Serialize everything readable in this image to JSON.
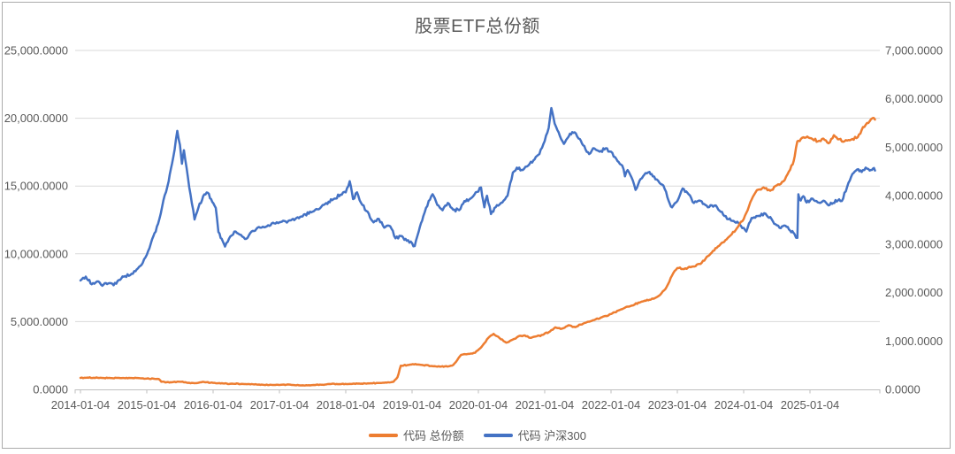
{
  "chart_data": {
    "type": "line",
    "title": "股票ETF总份额",
    "legend_position": "bottom",
    "grid": true,
    "background": "#FFFFFF",
    "gridline_color": "#D9D9D9",
    "axis_line_color": "#BFBFBF",
    "text_color": "#595959",
    "frame_color": "#ABABAB",
    "x_axis": {
      "type": "date",
      "domain_years": [
        2014,
        2026
      ],
      "tick_labels": [
        "2014-01-04",
        "2015-01-04",
        "2016-01-04",
        "2017-01-04",
        "2018-01-04",
        "2019-01-04",
        "2020-01-04",
        "2021-01-04",
        "2022-01-04",
        "2023-01-04",
        "2024-01-04",
        "2025-01-04"
      ]
    },
    "y_axis_left": {
      "min": 0,
      "max": 25000,
      "step": 5000,
      "tick_labels": [
        "0.0000",
        "5,000.0000",
        "10,000.0000",
        "15,000.0000",
        "20,000.0000",
        "25,000.0000"
      ]
    },
    "y_axis_right": {
      "min": 0,
      "max": 7000,
      "step": 1000,
      "tick_labels": [
        "0.0000",
        "1,000.0000",
        "2,000.0000",
        "3,000.0000",
        "4,000.0000",
        "5,000.0000",
        "6,000.0000",
        "7,000.0000"
      ]
    },
    "series": [
      {
        "name": "代码 总份额",
        "axis": "left",
        "color": "#ED7D31",
        "points": [
          [
            2014.0,
            850
          ],
          [
            2014.1,
            870
          ],
          [
            2014.2,
            855
          ],
          [
            2014.3,
            860
          ],
          [
            2014.45,
            840
          ],
          [
            2014.6,
            835
          ],
          [
            2014.75,
            840
          ],
          [
            2014.9,
            820
          ],
          [
            2015.0,
            800
          ],
          [
            2015.1,
            790
          ],
          [
            2015.18,
            770
          ],
          [
            2015.22,
            560
          ],
          [
            2015.3,
            530
          ],
          [
            2015.4,
            545
          ],
          [
            2015.5,
            560
          ],
          [
            2015.6,
            500
          ],
          [
            2015.7,
            470
          ],
          [
            2015.8,
            520
          ],
          [
            2015.9,
            530
          ],
          [
            2016.0,
            480
          ],
          [
            2016.15,
            440
          ],
          [
            2016.3,
            420
          ],
          [
            2016.45,
            400
          ],
          [
            2016.6,
            380
          ],
          [
            2016.75,
            340
          ],
          [
            2016.9,
            330
          ],
          [
            2017.05,
            350
          ],
          [
            2017.2,
            330
          ],
          [
            2017.35,
            300
          ],
          [
            2017.5,
            320
          ],
          [
            2017.65,
            340
          ],
          [
            2017.75,
            400
          ],
          [
            2017.9,
            390
          ],
          [
            2018.05,
            400
          ],
          [
            2018.2,
            430
          ],
          [
            2018.35,
            440
          ],
          [
            2018.5,
            470
          ],
          [
            2018.62,
            500
          ],
          [
            2018.72,
            560
          ],
          [
            2018.78,
            900
          ],
          [
            2018.83,
            1750
          ],
          [
            2018.95,
            1800
          ],
          [
            2019.05,
            1870
          ],
          [
            2019.15,
            1800
          ],
          [
            2019.3,
            1720
          ],
          [
            2019.42,
            1680
          ],
          [
            2019.55,
            1700
          ],
          [
            2019.62,
            1800
          ],
          [
            2019.68,
            2150
          ],
          [
            2019.74,
            2550
          ],
          [
            2019.85,
            2620
          ],
          [
            2019.95,
            2700
          ],
          [
            2020.05,
            3150
          ],
          [
            2020.15,
            3800
          ],
          [
            2020.23,
            4100
          ],
          [
            2020.32,
            3780
          ],
          [
            2020.42,
            3450
          ],
          [
            2020.52,
            3680
          ],
          [
            2020.62,
            3950
          ],
          [
            2020.7,
            3980
          ],
          [
            2020.78,
            3800
          ],
          [
            2020.88,
            3920
          ],
          [
            2020.97,
            4020
          ],
          [
            2021.08,
            4270
          ],
          [
            2021.16,
            4580
          ],
          [
            2021.24,
            4460
          ],
          [
            2021.36,
            4730
          ],
          [
            2021.46,
            4590
          ],
          [
            2021.6,
            4900
          ],
          [
            2021.75,
            5120
          ],
          [
            2021.9,
            5400
          ],
          [
            2022.0,
            5560
          ],
          [
            2022.15,
            5900
          ],
          [
            2022.3,
            6160
          ],
          [
            2022.45,
            6450
          ],
          [
            2022.6,
            6620
          ],
          [
            2022.72,
            6900
          ],
          [
            2022.82,
            7400
          ],
          [
            2022.92,
            8400
          ],
          [
            2023.0,
            8950
          ],
          [
            2023.1,
            8870
          ],
          [
            2023.22,
            9050
          ],
          [
            2023.35,
            9250
          ],
          [
            2023.5,
            10000
          ],
          [
            2023.65,
            10700
          ],
          [
            2023.8,
            11350
          ],
          [
            2023.9,
            11900
          ],
          [
            2024.0,
            12550
          ],
          [
            2024.1,
            13800
          ],
          [
            2024.2,
            14700
          ],
          [
            2024.3,
            14900
          ],
          [
            2024.4,
            14650
          ],
          [
            2024.5,
            15050
          ],
          [
            2024.6,
            15350
          ],
          [
            2024.68,
            16050
          ],
          [
            2024.74,
            16600
          ],
          [
            2024.77,
            17200
          ],
          [
            2024.81,
            18300
          ],
          [
            2024.88,
            18550
          ],
          [
            2024.96,
            18650
          ],
          [
            2025.04,
            18450
          ],
          [
            2025.12,
            18300
          ],
          [
            2025.2,
            18500
          ],
          [
            2025.28,
            18150
          ],
          [
            2025.36,
            18750
          ],
          [
            2025.44,
            18450
          ],
          [
            2025.52,
            18300
          ],
          [
            2025.62,
            18420
          ],
          [
            2025.72,
            18600
          ],
          [
            2025.8,
            19350
          ],
          [
            2025.88,
            19650
          ],
          [
            2025.94,
            20000
          ],
          [
            2025.98,
            19900
          ]
        ]
      },
      {
        "name": "代码 沪深300",
        "axis": "right",
        "color": "#4472C4",
        "points": [
          [
            2014.0,
            2250
          ],
          [
            2014.08,
            2330
          ],
          [
            2014.17,
            2170
          ],
          [
            2014.25,
            2230
          ],
          [
            2014.33,
            2140
          ],
          [
            2014.42,
            2190
          ],
          [
            2014.5,
            2150
          ],
          [
            2014.58,
            2260
          ],
          [
            2014.67,
            2340
          ],
          [
            2014.75,
            2360
          ],
          [
            2014.83,
            2440
          ],
          [
            2014.92,
            2570
          ],
          [
            2015.0,
            2780
          ],
          [
            2015.08,
            3100
          ],
          [
            2015.17,
            3420
          ],
          [
            2015.25,
            3900
          ],
          [
            2015.33,
            4300
          ],
          [
            2015.4,
            4800
          ],
          [
            2015.46,
            5340
          ],
          [
            2015.5,
            5050
          ],
          [
            2015.53,
            4660
          ],
          [
            2015.56,
            4940
          ],
          [
            2015.62,
            4380
          ],
          [
            2015.68,
            3840
          ],
          [
            2015.72,
            3510
          ],
          [
            2015.78,
            3760
          ],
          [
            2015.85,
            3990
          ],
          [
            2015.92,
            4060
          ],
          [
            2015.97,
            3930
          ],
          [
            2016.04,
            3750
          ],
          [
            2016.08,
            3250
          ],
          [
            2016.13,
            3110
          ],
          [
            2016.18,
            2950
          ],
          [
            2016.26,
            3160
          ],
          [
            2016.34,
            3260
          ],
          [
            2016.42,
            3190
          ],
          [
            2016.5,
            3110
          ],
          [
            2016.58,
            3260
          ],
          [
            2016.67,
            3340
          ],
          [
            2016.75,
            3360
          ],
          [
            2016.83,
            3390
          ],
          [
            2016.92,
            3430
          ],
          [
            2017.0,
            3450
          ],
          [
            2017.17,
            3490
          ],
          [
            2017.33,
            3570
          ],
          [
            2017.5,
            3670
          ],
          [
            2017.67,
            3810
          ],
          [
            2017.83,
            3940
          ],
          [
            2017.92,
            4020
          ],
          [
            2018.0,
            4070
          ],
          [
            2018.06,
            4300
          ],
          [
            2018.11,
            3930
          ],
          [
            2018.17,
            4070
          ],
          [
            2018.25,
            3810
          ],
          [
            2018.33,
            3670
          ],
          [
            2018.42,
            3450
          ],
          [
            2018.5,
            3520
          ],
          [
            2018.58,
            3340
          ],
          [
            2018.67,
            3370
          ],
          [
            2018.75,
            3120
          ],
          [
            2018.83,
            3170
          ],
          [
            2018.92,
            3070
          ],
          [
            2019.0,
            3020
          ],
          [
            2019.04,
            2960
          ],
          [
            2019.1,
            3260
          ],
          [
            2019.17,
            3580
          ],
          [
            2019.25,
            3890
          ],
          [
            2019.31,
            4030
          ],
          [
            2019.38,
            3810
          ],
          [
            2019.46,
            3700
          ],
          [
            2019.54,
            3850
          ],
          [
            2019.62,
            3710
          ],
          [
            2019.71,
            3700
          ],
          [
            2019.79,
            3890
          ],
          [
            2019.88,
            3940
          ],
          [
            2019.96,
            4070
          ],
          [
            2020.04,
            4170
          ],
          [
            2020.09,
            3760
          ],
          [
            2020.13,
            4000
          ],
          [
            2020.19,
            3620
          ],
          [
            2020.26,
            3760
          ],
          [
            2020.34,
            3850
          ],
          [
            2020.44,
            4000
          ],
          [
            2020.52,
            4480
          ],
          [
            2020.58,
            4580
          ],
          [
            2020.67,
            4530
          ],
          [
            2020.75,
            4620
          ],
          [
            2020.83,
            4730
          ],
          [
            2020.92,
            4860
          ],
          [
            2021.0,
            5130
          ],
          [
            2021.06,
            5400
          ],
          [
            2021.1,
            5810
          ],
          [
            2021.15,
            5490
          ],
          [
            2021.21,
            5310
          ],
          [
            2021.29,
            5070
          ],
          [
            2021.38,
            5280
          ],
          [
            2021.45,
            5310
          ],
          [
            2021.53,
            5170
          ],
          [
            2021.58,
            5040
          ],
          [
            2021.67,
            4860
          ],
          [
            2021.73,
            4980
          ],
          [
            2021.83,
            4910
          ],
          [
            2021.92,
            4980
          ],
          [
            2022.0,
            4910
          ],
          [
            2022.08,
            4760
          ],
          [
            2022.17,
            4620
          ],
          [
            2022.21,
            4400
          ],
          [
            2022.25,
            4530
          ],
          [
            2022.33,
            4310
          ],
          [
            2022.37,
            4120
          ],
          [
            2022.43,
            4310
          ],
          [
            2022.5,
            4430
          ],
          [
            2022.58,
            4490
          ],
          [
            2022.63,
            4400
          ],
          [
            2022.71,
            4310
          ],
          [
            2022.79,
            4210
          ],
          [
            2022.87,
            3890
          ],
          [
            2022.92,
            3760
          ],
          [
            2023.0,
            3890
          ],
          [
            2023.08,
            4150
          ],
          [
            2023.17,
            4030
          ],
          [
            2023.25,
            3850
          ],
          [
            2023.33,
            3900
          ],
          [
            2023.46,
            3760
          ],
          [
            2023.58,
            3800
          ],
          [
            2023.71,
            3580
          ],
          [
            2023.83,
            3480
          ],
          [
            2023.92,
            3440
          ],
          [
            2024.04,
            3260
          ],
          [
            2024.12,
            3540
          ],
          [
            2024.21,
            3580
          ],
          [
            2024.33,
            3630
          ],
          [
            2024.42,
            3520
          ],
          [
            2024.5,
            3390
          ],
          [
            2024.56,
            3330
          ],
          [
            2024.63,
            3380
          ],
          [
            2024.7,
            3280
          ],
          [
            2024.77,
            3200
          ],
          [
            2024.81,
            3130
          ],
          [
            2024.825,
            4030
          ],
          [
            2024.86,
            3900
          ],
          [
            2024.9,
            3990
          ],
          [
            2024.95,
            3860
          ],
          [
            2025.02,
            3940
          ],
          [
            2025.08,
            3890
          ],
          [
            2025.15,
            3850
          ],
          [
            2025.22,
            3890
          ],
          [
            2025.28,
            3800
          ],
          [
            2025.35,
            3850
          ],
          [
            2025.42,
            3900
          ],
          [
            2025.48,
            3890
          ],
          [
            2025.56,
            4180
          ],
          [
            2025.64,
            4450
          ],
          [
            2025.71,
            4540
          ],
          [
            2025.78,
            4490
          ],
          [
            2025.84,
            4580
          ],
          [
            2025.9,
            4520
          ],
          [
            2025.95,
            4560
          ],
          [
            2025.98,
            4520
          ]
        ]
      }
    ]
  }
}
